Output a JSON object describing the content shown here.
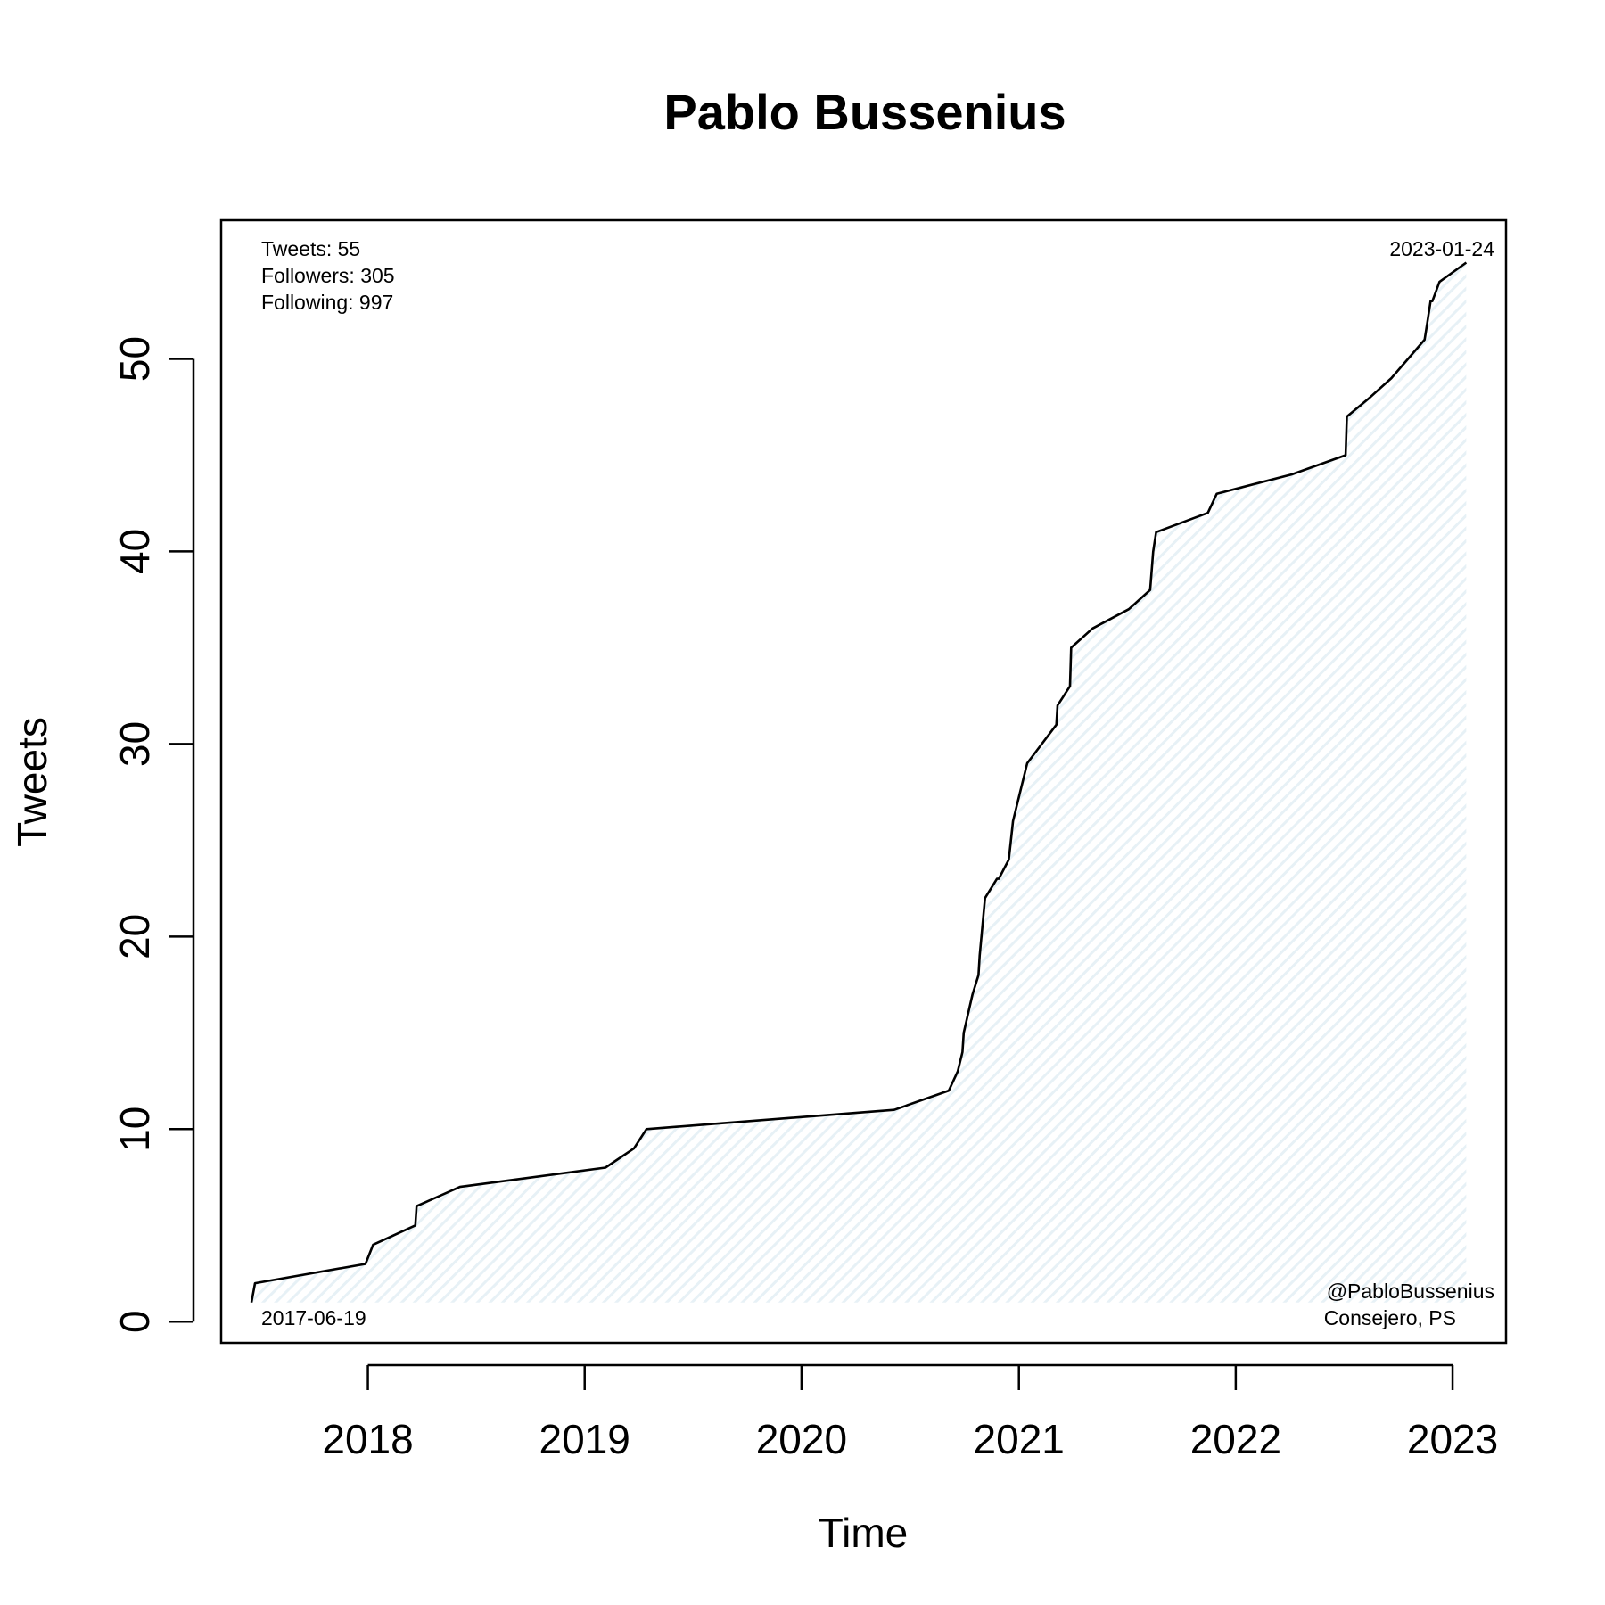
{
  "chart_data": {
    "type": "area",
    "title": "Pablo Bussenius",
    "xlabel": "Time",
    "ylabel": "Tweets",
    "x_ticks": [
      "2018",
      "2019",
      "2020",
      "2021",
      "2022",
      "2023"
    ],
    "y_ticks": [
      "0",
      "10",
      "20",
      "30",
      "40",
      "50"
    ],
    "xlim": [
      "2017-04-29",
      "2023-04-01"
    ],
    "ylim": [
      -1.1,
      57.2
    ],
    "grid": false,
    "fill_color": "#e7f1f6",
    "line_color": "#000000",
    "series": [
      {
        "x": [
          "2017-06-19",
          "2017-06-25",
          "2017-12-28",
          "2018-01-10",
          "2018-03-22",
          "2018-03-24",
          "2018-06-05",
          "2019-02-05",
          "2019-03-25",
          "2019-04-15",
          "2020-06-05",
          "2020-09-05",
          "2020-09-20",
          "2020-09-28",
          "2020-09-30",
          "2020-10-15",
          "2020-10-25",
          "2020-10-27",
          "2020-11-05",
          "2020-11-25",
          "2020-11-28",
          "2020-12-15",
          "2020-12-22",
          "2021-01-15",
          "2021-03-05",
          "2021-03-07",
          "2021-03-28",
          "2021-03-30",
          "2021-05-05",
          "2021-07-05",
          "2021-08-10",
          "2021-08-15",
          "2021-08-20",
          "2021-11-15",
          "2021-11-30",
          "2022-04-05",
          "2022-07-05",
          "2022-07-07",
          "2022-08-15",
          "2022-09-20",
          "2022-11-15",
          "2022-11-20",
          "2022-11-25",
          "2022-11-28",
          "2022-12-10",
          "2023-01-24"
        ],
        "y": [
          1,
          2,
          3,
          4,
          5,
          6,
          7,
          8,
          9,
          10,
          11,
          12,
          13,
          14,
          15,
          17,
          18,
          19,
          22,
          23,
          23,
          24,
          26,
          29,
          31,
          32,
          33,
          35,
          36,
          37,
          38,
          40,
          41,
          42,
          43,
          44,
          45,
          47,
          48,
          49,
          51,
          52,
          53,
          53,
          54,
          55
        ]
      }
    ]
  },
  "annotations": {
    "stats": [
      "Tweets: 55",
      "Followers: 305",
      "Following: 997"
    ],
    "start_date": "2017-06-19",
    "end_date": "2023-01-24",
    "credit": [
      "@PabloBussenius",
      "Consejero, PS"
    ]
  }
}
